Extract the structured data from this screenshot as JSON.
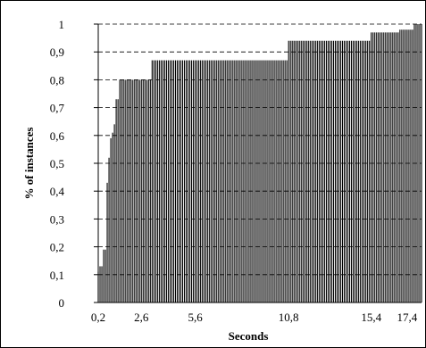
{
  "chart_data": {
    "type": "bar",
    "xlabel": "Seconds",
    "ylabel": "% of instances",
    "ylim": [
      0,
      1
    ],
    "grid": "horizontal dashed",
    "yticks": [
      "0",
      "0,1",
      "0,2",
      "0,3",
      "0,4",
      "0,5",
      "0,6",
      "0,7",
      "0,8",
      "0,9",
      "1"
    ],
    "xticks": [
      {
        "value": 0.2,
        "label": "0,2"
      },
      {
        "value": 2.6,
        "label": "2,6"
      },
      {
        "value": 5.6,
        "label": "5,6"
      },
      {
        "value": 10.8,
        "label": "10,8"
      },
      {
        "value": 15.4,
        "label": "15,4"
      },
      {
        "value": 17.4,
        "label": "17,4"
      }
    ],
    "x_start": 0.2,
    "x_step": 0.1,
    "bar_color": "#000000",
    "values": [
      0.11,
      0.13,
      0.13,
      0.19,
      0.19,
      0.43,
      0.52,
      0.59,
      0.61,
      0.64,
      0.73,
      0.73,
      0.8,
      0.8,
      0.8,
      0.8,
      0.8,
      0.8,
      0.8,
      0.8,
      0.8,
      0.8,
      0.8,
      0.8,
      0.8,
      0.8,
      0.8,
      0.8,
      0.8,
      0.8,
      0.87,
      0.87,
      0.87,
      0.87,
      0.87,
      0.87,
      0.87,
      0.87,
      0.87,
      0.87,
      0.87,
      0.87,
      0.87,
      0.87,
      0.87,
      0.87,
      0.87,
      0.87,
      0.87,
      0.87,
      0.87,
      0.87,
      0.87,
      0.87,
      0.87,
      0.87,
      0.87,
      0.87,
      0.87,
      0.87,
      0.87,
      0.87,
      0.87,
      0.87,
      0.87,
      0.87,
      0.87,
      0.87,
      0.87,
      0.87,
      0.87,
      0.87,
      0.87,
      0.87,
      0.87,
      0.87,
      0.87,
      0.87,
      0.87,
      0.87,
      0.87,
      0.87,
      0.87,
      0.87,
      0.87,
      0.87,
      0.87,
      0.87,
      0.87,
      0.87,
      0.87,
      0.87,
      0.87,
      0.87,
      0.87,
      0.87,
      0.87,
      0.87,
      0.87,
      0.87,
      0.87,
      0.87,
      0.87,
      0.87,
      0.87,
      0.87,
      0.94,
      0.94,
      0.94,
      0.94,
      0.94,
      0.94,
      0.94,
      0.94,
      0.94,
      0.94,
      0.94,
      0.94,
      0.94,
      0.94,
      0.94,
      0.94,
      0.94,
      0.94,
      0.94,
      0.94,
      0.94,
      0.94,
      0.94,
      0.94,
      0.94,
      0.94,
      0.94,
      0.94,
      0.94,
      0.94,
      0.94,
      0.94,
      0.94,
      0.94,
      0.94,
      0.94,
      0.94,
      0.94,
      0.94,
      0.94,
      0.94,
      0.94,
      0.94,
      0.94,
      0.94,
      0.94,
      0.97,
      0.97,
      0.97,
      0.97,
      0.97,
      0.97,
      0.97,
      0.97,
      0.97,
      0.97,
      0.97,
      0.97,
      0.97,
      0.97,
      0.97,
      0.97,
      0.98,
      0.98,
      0.98,
      0.98,
      0.98,
      0.98,
      0.98,
      0.98,
      1.0,
      1.0,
      1.0,
      1.0,
      1.0
    ]
  }
}
